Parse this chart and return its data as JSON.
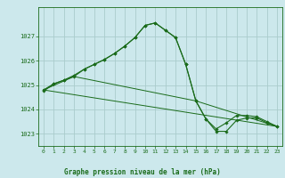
{
  "background_color": "#cce8ec",
  "grid_color": "#aacccc",
  "line_color": "#1a6b1a",
  "marker_color": "#1a6b1a",
  "xlabel": "Graphe pression niveau de la mer (hPa)",
  "xlim": [
    -0.5,
    23.5
  ],
  "ylim": [
    1022.5,
    1028.2
  ],
  "yticks": [
    1023,
    1024,
    1025,
    1026,
    1027
  ],
  "xticks": [
    0,
    1,
    2,
    3,
    4,
    5,
    6,
    7,
    8,
    9,
    10,
    11,
    12,
    13,
    14,
    15,
    16,
    17,
    18,
    19,
    20,
    21,
    22,
    23
  ],
  "series1_x": [
    0,
    1,
    2,
    3,
    4,
    5,
    6,
    7,
    8,
    9,
    10,
    11,
    12,
    13,
    14,
    15,
    16,
    17,
    18,
    19,
    20,
    21,
    22,
    23
  ],
  "series1_y": [
    1024.8,
    1025.05,
    1025.2,
    1025.4,
    1025.65,
    1025.85,
    1026.05,
    1026.3,
    1026.6,
    1026.95,
    1027.45,
    1027.55,
    1027.25,
    1026.95,
    1025.85,
    1024.35,
    1023.6,
    1023.1,
    1023.1,
    1023.55,
    1023.65,
    1023.65,
    1023.45,
    1023.3
  ],
  "series2_x": [
    0,
    1,
    2,
    3,
    4,
    5,
    6,
    7,
    8,
    9,
    10,
    11,
    12,
    13,
    14,
    15,
    16,
    17,
    18,
    19,
    20,
    21,
    22,
    23
  ],
  "series2_y": [
    1024.75,
    1025.05,
    1025.2,
    1025.35,
    1025.65,
    1025.85,
    1026.05,
    1026.3,
    1026.6,
    1026.95,
    1027.45,
    1027.55,
    1027.25,
    1026.95,
    1025.85,
    1024.35,
    1023.6,
    1023.2,
    1023.45,
    1023.75,
    1023.75,
    1023.7,
    1023.5,
    1023.3
  ],
  "series3_x": [
    0,
    23
  ],
  "series3_y": [
    1024.8,
    1023.3
  ],
  "series4_x": [
    0,
    3,
    15,
    23
  ],
  "series4_y": [
    1024.8,
    1025.35,
    1024.35,
    1023.3
  ]
}
